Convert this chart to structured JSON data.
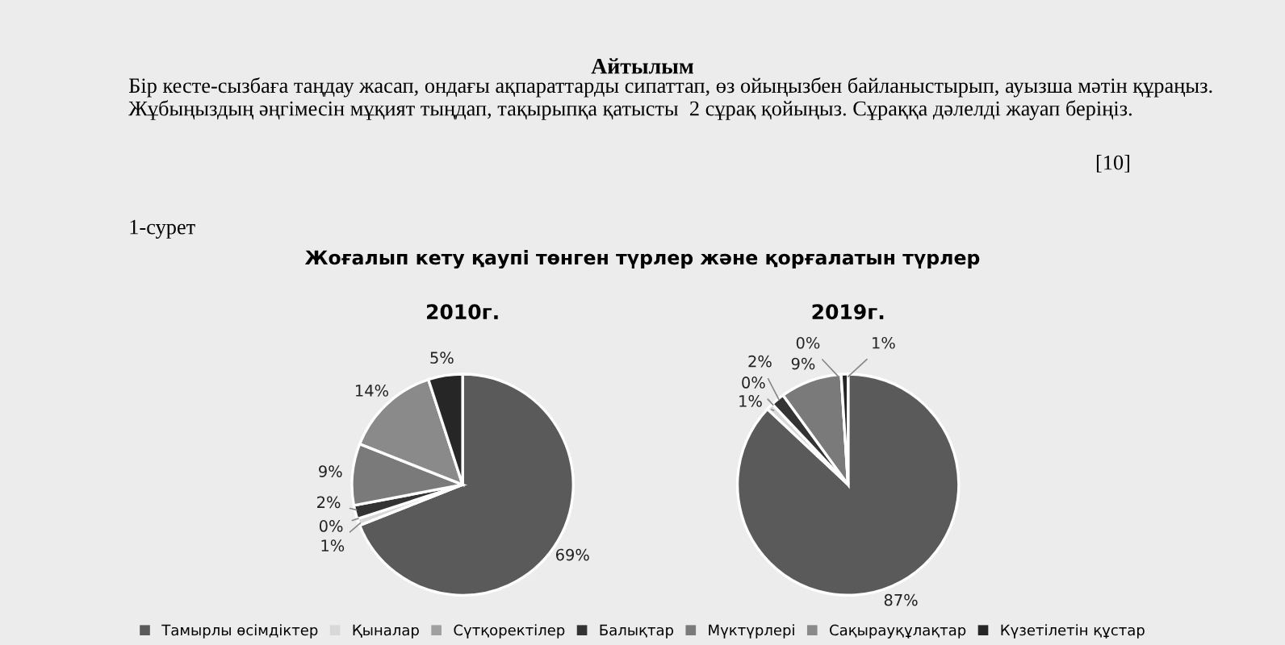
{
  "chart_data": [
    {
      "type": "pie",
      "title": "Жоғалып кету қаупі төнген түрлер және қорғалатын түрлер",
      "subtitle": "2010г.",
      "annotations": [
        "Айтылым",
        "Бір кесте-сызбаға таңдау жасап, ондағы ақпараттарды сипаттап, өз ойыңызбен байланыстырып, ауызша мәтін құраңыз.  Жұбыңыздың әңгімесін мұқият тыңдап, тақырыпқа қатысты  2 сұрақ қойыңыз. Сұраққа дәлелді жауап беріңіз.",
        "[10]",
        "1-сурет"
      ],
      "categories": [
        "Тамырлы өсімдіктер",
        "Қыналар",
        "Сүтқоректілер",
        "Балықтар",
        "Мүктүрлері",
        "Сақырауқұлақтар",
        "Күзетілетін құстар"
      ],
      "values": [
        69,
        1,
        0,
        2,
        9,
        14,
        5
      ],
      "value_labels": [
        "69%",
        "1%",
        "0%",
        "2%",
        "9%",
        "14%",
        "5%"
      ],
      "colors": [
        "#5a5a5a",
        "#d8d8d8",
        "#a0a0a0",
        "#333333",
        "#7a7a7a",
        "#8a8a8a",
        "#262626"
      ],
      "legend": "bottom"
    },
    {
      "type": "pie",
      "subtitle": "2019г.",
      "categories": [
        null,
        null,
        null,
        null,
        null,
        null,
        null
      ],
      "values": [
        87,
        1,
        0,
        2,
        9,
        0,
        1
      ],
      "value_labels": [
        "87%",
        "1%",
        "0%",
        "2%",
        "9%",
        "0%",
        "1%"
      ],
      "colors": [
        "#5a5a5a",
        "#d8d8d8",
        "#a0a0a0",
        "#333333",
        "#7a7a7a",
        "#8a8a8a",
        "#262626"
      ]
    }
  ]
}
